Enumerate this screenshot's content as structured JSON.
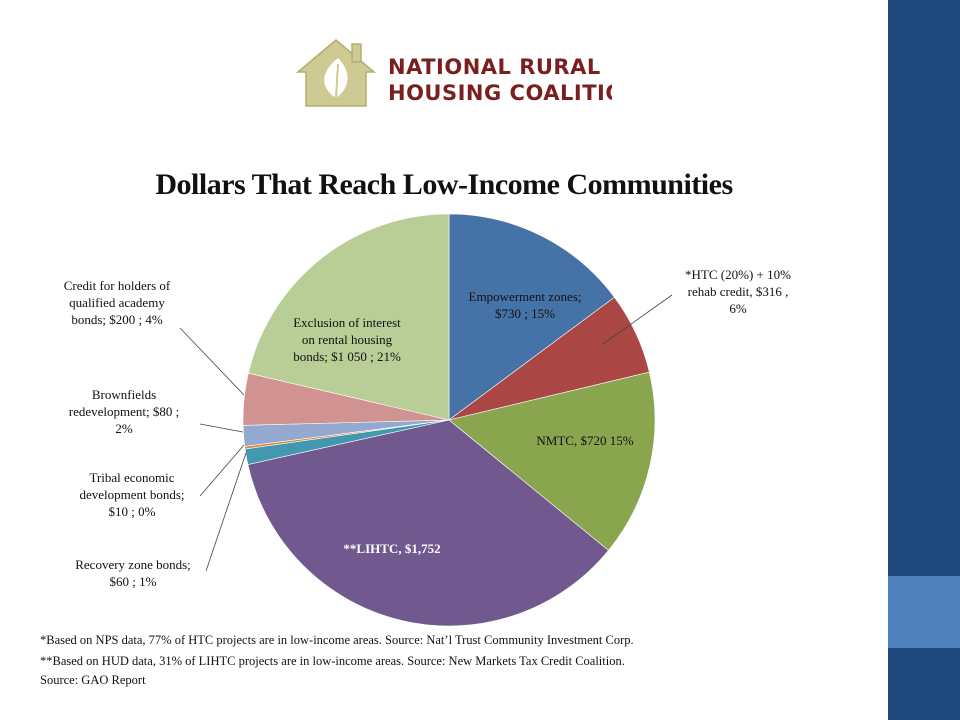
{
  "logo": {
    "line1": "NATIONAL RURAL",
    "line2": "HOUSING COALITION"
  },
  "colors": {
    "sidebar": "#1f497d",
    "sidebar_accent": "#4f81bd",
    "logo_red": "#7a1f1f",
    "logo_house": "#c9c38a"
  },
  "chart_data": {
    "type": "pie",
    "title": "Dollars That Reach Low-Income Communities",
    "legend": "none",
    "slices": [
      {
        "name": "Empowerment zones",
        "value": 730,
        "percent": 15,
        "color": "#4573a7",
        "label_lines": [
          "Empowerment zones;",
          "$730 ; 15%"
        ]
      },
      {
        "name": "*HTC (20%) + 10% rehab credit",
        "value": 316,
        "percent": 6,
        "color": "#aa4644",
        "label_lines": [
          "*HTC (20%) + 10%",
          "rehab credit,  $316 ,",
          "6%"
        ]
      },
      {
        "name": "NMTC",
        "value": 720,
        "percent": 15,
        "color": "#89a54e",
        "label_lines": [
          "NMTC,  $720 15%"
        ]
      },
      {
        "name": "**LIHTC",
        "value": 1752,
        "percent": null,
        "color": "#71588f",
        "label_lines": [
          "**LIHTC,  $1,752"
        ]
      },
      {
        "name": "Recovery zone bonds",
        "value": 60,
        "percent": 1,
        "color": "#4298af",
        "label_lines": [
          "Recovery zone bonds;",
          "$60 ; 1%"
        ]
      },
      {
        "name": "Tribal economic development bonds",
        "value": 10,
        "percent": 0,
        "color": "#db843d",
        "label_lines": [
          "Tribal  economic",
          "development bonds;",
          "$10 ; 0%"
        ]
      },
      {
        "name": "Brownfields redevelopment",
        "value": 80,
        "percent": 2,
        "color": "#93a9cf",
        "label_lines": [
          "Brownfields",
          "redevelopment;  $80 ;",
          "2%"
        ]
      },
      {
        "name": "Credit for holders of qualified academy bonds",
        "value": 200,
        "percent": 4,
        "color": "#d19392",
        "label_lines": [
          "Credit for holders of",
          "qualified academy",
          "bonds;  $200 ; 4%"
        ]
      },
      {
        "name": "Exclusion of interest on rental housing bonds",
        "value": 1050,
        "percent": 21,
        "color": "#b9cd96",
        "label_lines": [
          "Exclusion of interest",
          "on rental housing",
          "bonds;  $1 050 ; 21%"
        ]
      }
    ]
  },
  "footnotes": [
    "*Based on NPS data, 77% of HTC projects are in low-income areas. Source: Nat’l Trust Community Investment Corp.",
    "**Based on HUD data, 31% of LIHTC projects are in low-income areas. Source: New Markets Tax Credit Coalition.",
    "Source: GAO Report"
  ]
}
